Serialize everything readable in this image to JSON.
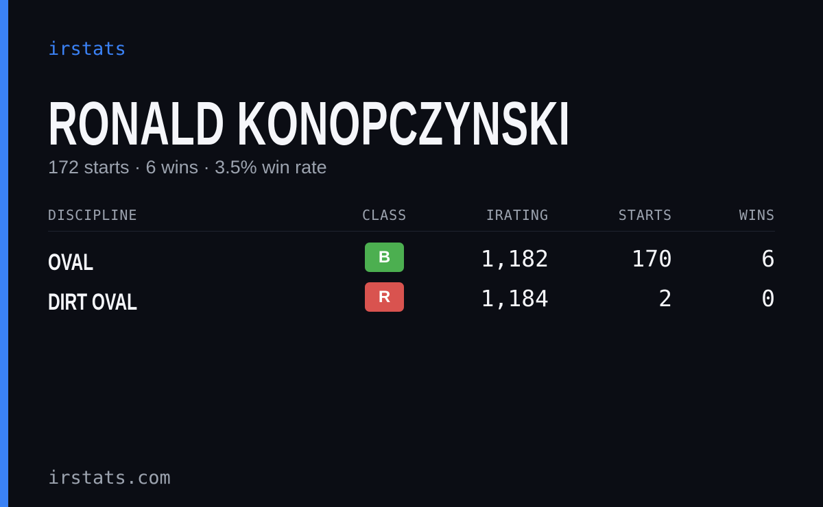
{
  "brand": "irstats",
  "driver": {
    "name": "RONALD KONOPCZYNSKI",
    "summary": "172 starts · 6 wins · 3.5% win rate"
  },
  "table": {
    "headers": [
      "DISCIPLINE",
      "CLASS",
      "IRATING",
      "STARTS",
      "WINS"
    ],
    "rows": [
      {
        "discipline": "OVAL",
        "class": "B",
        "class_color": "#4caf50",
        "irating": "1,182",
        "starts": "170",
        "wins": "6"
      },
      {
        "discipline": "DIRT OVAL",
        "class": "R",
        "class_color": "#d9534f",
        "irating": "1,184",
        "starts": "2",
        "wins": "0"
      }
    ]
  },
  "footer": "irstats.com"
}
